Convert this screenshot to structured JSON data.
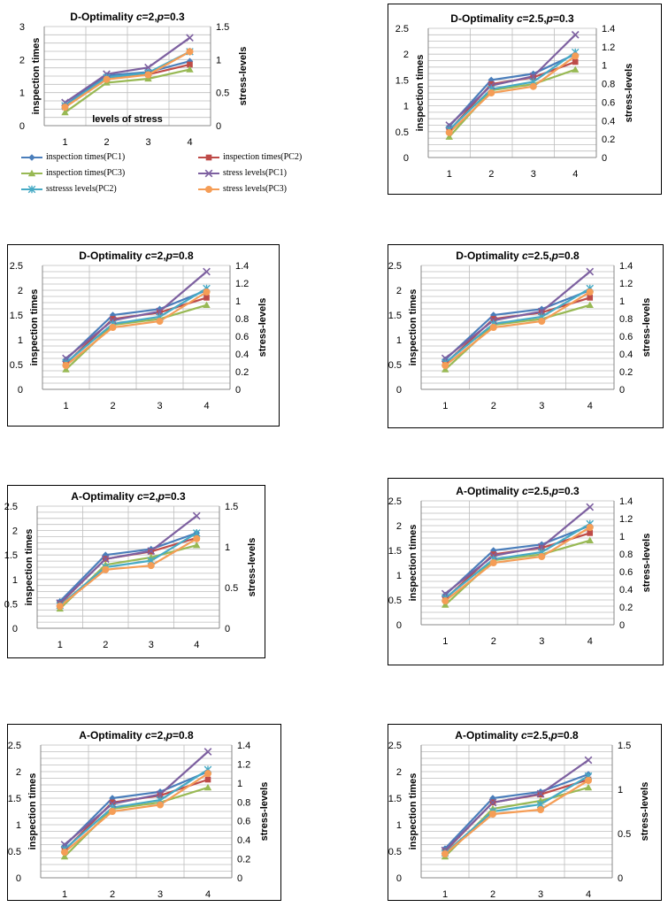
{
  "colors": {
    "inspection_pc1": "#4A7EBB",
    "inspection_pc2": "#BE4B48",
    "inspection_pc3": "#98B954",
    "stress_pc1": "#7D60A0",
    "stress_pc2": "#46AAC5",
    "stress_pc3": "#F59D56",
    "grid": "#BEBEBE",
    "frame": "#000000"
  },
  "legend": [
    {
      "label": "inspection times(PC1)",
      "marker": "diamond",
      "color_key": "inspection_pc1"
    },
    {
      "label": "inspection times(PC2)",
      "marker": "square",
      "color_key": "inspection_pc2"
    },
    {
      "label": "inspection times(PC3)",
      "marker": "triangle",
      "color_key": "inspection_pc3"
    },
    {
      "label": "stress levels(PC1)",
      "marker": "x",
      "color_key": "stress_pc1"
    },
    {
      "label": "sstresss levels(PC2)",
      "marker": "star",
      "color_key": "stress_pc2"
    },
    {
      "label": "stress levels(PC3)",
      "marker": "circle",
      "color_key": "stress_pc3"
    }
  ],
  "chart_data": [
    {
      "type": "line",
      "title_prefix": "D-Optimality",
      "c": "2",
      "p": "0.3",
      "categories": [
        "1",
        "2",
        "3",
        "4"
      ],
      "ylabel_left": "inspection times",
      "ylabel_right": "stress-levels",
      "xlabel": "levels  of stress",
      "ylim_left": [
        0,
        3
      ],
      "yticks_left": [
        "0",
        "1",
        "2",
        "3"
      ],
      "ygrid_step_left": 0.25,
      "ylim_right": [
        0,
        1.5
      ],
      "yticks_right": [
        "0",
        "0.5",
        "1",
        "1.5"
      ],
      "series": [
        {
          "name": "inspection times(PC1)",
          "axis": "left",
          "values": [
            0.62,
            1.52,
            1.62,
            1.95
          ]
        },
        {
          "name": "inspection times(PC2)",
          "axis": "left",
          "values": [
            0.56,
            1.43,
            1.55,
            1.85
          ]
        },
        {
          "name": "inspection times(PC3)",
          "axis": "left",
          "values": [
            0.4,
            1.3,
            1.42,
            1.7
          ]
        },
        {
          "name": "stress levels(PC1)",
          "axis": "right",
          "values": [
            0.35,
            0.78,
            0.88,
            1.33
          ]
        },
        {
          "name": "sstresss levels(PC2)",
          "axis": "right",
          "values": [
            0.3,
            0.73,
            0.8,
            1.12
          ]
        },
        {
          "name": "stress levels(PC3)",
          "axis": "right",
          "values": [
            0.28,
            0.7,
            0.77,
            1.12
          ]
        }
      ]
    },
    {
      "type": "line",
      "title_prefix": "D-Optimality",
      "c": "2.5",
      "p": "0.3",
      "categories": [
        "1",
        "2",
        "3",
        "4"
      ],
      "ylabel_left": "inspection times",
      "ylabel_right": "stress-levels",
      "xlabel": "",
      "ylim_left": [
        0,
        2.5
      ],
      "yticks_left": [
        "0",
        "0.5",
        "1",
        "1.5",
        "2",
        "2.5"
      ],
      "ygrid_step_left": 0.125,
      "ylim_right": [
        0,
        1.4
      ],
      "yticks_right": [
        "0",
        "0.2",
        "0.4",
        "0.6",
        "0.8",
        "1",
        "1.2",
        "1.4"
      ],
      "series": [
        {
          "name": "inspection times(PC1)",
          "axis": "left",
          "values": [
            0.6,
            1.5,
            1.62,
            2.0
          ]
        },
        {
          "name": "inspection times(PC2)",
          "axis": "left",
          "values": [
            0.52,
            1.42,
            1.55,
            1.85
          ]
        },
        {
          "name": "inspection times(PC3)",
          "axis": "left",
          "values": [
            0.4,
            1.3,
            1.42,
            1.7
          ]
        },
        {
          "name": "stress levels(PC1)",
          "axis": "right",
          "values": [
            0.35,
            0.78,
            0.88,
            1.33
          ]
        },
        {
          "name": "sstresss levels(PC2)",
          "axis": "right",
          "values": [
            0.3,
            0.74,
            0.82,
            1.14
          ]
        },
        {
          "name": "stress levels(PC3)",
          "axis": "right",
          "values": [
            0.27,
            0.7,
            0.77,
            1.1
          ]
        }
      ]
    },
    {
      "type": "line",
      "title_prefix": "D-Optimality",
      "c": "2",
      "p": "0.8",
      "categories": [
        "1",
        "2",
        "3",
        "4"
      ],
      "ylabel_left": "inspection times",
      "ylabel_right": "stress-levels",
      "xlabel": "",
      "ylim_left": [
        0,
        2.5
      ],
      "yticks_left": [
        "0",
        "0.5",
        "1",
        "1.5",
        "2",
        "2.5"
      ],
      "ygrid_step_left": 0.125,
      "ylim_right": [
        0,
        1.4
      ],
      "yticks_right": [
        "0",
        "0.2",
        "0.4",
        "0.6",
        "0.8",
        "1",
        "1.2",
        "1.4"
      ],
      "series": [
        {
          "name": "inspection times(PC1)",
          "axis": "left",
          "values": [
            0.6,
            1.5,
            1.62,
            2.0
          ]
        },
        {
          "name": "inspection times(PC2)",
          "axis": "left",
          "values": [
            0.52,
            1.42,
            1.55,
            1.85
          ]
        },
        {
          "name": "inspection times(PC3)",
          "axis": "left",
          "values": [
            0.4,
            1.3,
            1.42,
            1.7
          ]
        },
        {
          "name": "stress levels(PC1)",
          "axis": "right",
          "values": [
            0.35,
            0.78,
            0.88,
            1.33
          ]
        },
        {
          "name": "sstresss levels(PC2)",
          "axis": "right",
          "values": [
            0.3,
            0.74,
            0.82,
            1.14
          ]
        },
        {
          "name": "stress levels(PC3)",
          "axis": "right",
          "values": [
            0.27,
            0.7,
            0.77,
            1.1
          ]
        }
      ]
    },
    {
      "type": "line",
      "title_prefix": "D-Optimality",
      "c": "2.5",
      "p": "0.8",
      "categories": [
        "1",
        "2",
        "3",
        "4"
      ],
      "ylabel_left": "inspection times",
      "ylabel_right": "stress-levels",
      "xlabel": "",
      "ylim_left": [
        0,
        2.5
      ],
      "yticks_left": [
        "0",
        "0.5",
        "1",
        "1.5",
        "2",
        "2.5"
      ],
      "ygrid_step_left": 0.125,
      "ylim_right": [
        0,
        1.4
      ],
      "yticks_right": [
        "0",
        "0.2",
        "0.4",
        "0.6",
        "0.8",
        "1",
        "1.2",
        "1.4"
      ],
      "series": [
        {
          "name": "inspection times(PC1)",
          "axis": "left",
          "values": [
            0.6,
            1.5,
            1.62,
            2.0
          ]
        },
        {
          "name": "inspection times(PC2)",
          "axis": "left",
          "values": [
            0.52,
            1.42,
            1.55,
            1.85
          ]
        },
        {
          "name": "inspection times(PC3)",
          "axis": "left",
          "values": [
            0.4,
            1.3,
            1.42,
            1.7
          ]
        },
        {
          "name": "stress levels(PC1)",
          "axis": "right",
          "values": [
            0.35,
            0.78,
            0.88,
            1.33
          ]
        },
        {
          "name": "sstresss levels(PC2)",
          "axis": "right",
          "values": [
            0.3,
            0.74,
            0.82,
            1.14
          ]
        },
        {
          "name": "stress levels(PC3)",
          "axis": "right",
          "values": [
            0.27,
            0.7,
            0.77,
            1.1
          ]
        }
      ]
    },
    {
      "type": "line",
      "title_prefix": "A-Optimality",
      "c": "2",
      "p": "0.3",
      "categories": [
        "1",
        "2",
        "3",
        "4"
      ],
      "ylabel_left": "inspection times",
      "ylabel_right": "stress-levels",
      "xlabel": "",
      "ylim_left": [
        0,
        2.5
      ],
      "yticks_left": [
        "0",
        "0.5",
        "1",
        "1.5",
        "2",
        "2.5"
      ],
      "ygrid_step_left": 0.125,
      "ylim_right": [
        0,
        1.5
      ],
      "yticks_right": [
        "0",
        "0.5",
        "1",
        "1.5"
      ],
      "series": [
        {
          "name": "inspection times(PC1)",
          "axis": "left",
          "values": [
            0.55,
            1.5,
            1.62,
            1.95
          ]
        },
        {
          "name": "inspection times(PC2)",
          "axis": "left",
          "values": [
            0.5,
            1.42,
            1.57,
            1.85
          ]
        },
        {
          "name": "inspection times(PC3)",
          "axis": "left",
          "values": [
            0.4,
            1.3,
            1.45,
            1.7
          ]
        },
        {
          "name": "stress levels(PC1)",
          "axis": "right",
          "values": [
            0.31,
            0.85,
            0.95,
            1.38
          ]
        },
        {
          "name": "sstresss levels(PC2)",
          "axis": "right",
          "values": [
            0.28,
            0.75,
            0.83,
            1.17
          ]
        },
        {
          "name": "stress levels(PC3)",
          "axis": "right",
          "values": [
            0.27,
            0.72,
            0.77,
            1.1
          ]
        }
      ]
    },
    {
      "type": "line",
      "title_prefix": "A-Optimality",
      "c": "2.5",
      "p": "0.3",
      "categories": [
        "1",
        "2",
        "3",
        "4"
      ],
      "ylabel_left": "inspection times",
      "ylabel_right": "stress-levels",
      "xlabel": "",
      "ylim_left": [
        0,
        2.5
      ],
      "yticks_left": [
        "0",
        "0.5",
        "1",
        "1.5",
        "2",
        "2.5"
      ],
      "ygrid_step_left": 0.125,
      "ylim_right": [
        0,
        1.4
      ],
      "yticks_right": [
        "0",
        "0.2",
        "0.4",
        "0.6",
        "0.8",
        "1",
        "1.2",
        "1.4"
      ],
      "series": [
        {
          "name": "inspection times(PC1)",
          "axis": "left",
          "values": [
            0.6,
            1.5,
            1.62,
            2.0
          ]
        },
        {
          "name": "inspection times(PC2)",
          "axis": "left",
          "values": [
            0.52,
            1.42,
            1.55,
            1.85
          ]
        },
        {
          "name": "inspection times(PC3)",
          "axis": "left",
          "values": [
            0.4,
            1.3,
            1.42,
            1.7
          ]
        },
        {
          "name": "stress levels(PC1)",
          "axis": "right",
          "values": [
            0.35,
            0.78,
            0.88,
            1.33
          ]
        },
        {
          "name": "sstresss levels(PC2)",
          "axis": "right",
          "values": [
            0.3,
            0.74,
            0.82,
            1.14
          ]
        },
        {
          "name": "stress levels(PC3)",
          "axis": "right",
          "values": [
            0.27,
            0.7,
            0.77,
            1.1
          ]
        }
      ]
    },
    {
      "type": "line",
      "title_prefix": "A-Optimality",
      "c": "2",
      "p": "0.8",
      "categories": [
        "1",
        "2",
        "3",
        "4"
      ],
      "ylabel_left": "inspection times",
      "ylabel_right": "stress-levels",
      "xlabel": "",
      "ylim_left": [
        0,
        2.5
      ],
      "yticks_left": [
        "0",
        "0.5",
        "1",
        "1.5",
        "2",
        "2.5"
      ],
      "ygrid_step_left": 0.125,
      "ylim_right": [
        0,
        1.4
      ],
      "yticks_right": [
        "0",
        "0.2",
        "0.4",
        "0.6",
        "0.8",
        "1",
        "1.2",
        "1.4"
      ],
      "series": [
        {
          "name": "inspection times(PC1)",
          "axis": "left",
          "values": [
            0.6,
            1.5,
            1.62,
            2.0
          ]
        },
        {
          "name": "inspection times(PC2)",
          "axis": "left",
          "values": [
            0.52,
            1.42,
            1.55,
            1.85
          ]
        },
        {
          "name": "inspection times(PC3)",
          "axis": "left",
          "values": [
            0.4,
            1.3,
            1.42,
            1.7
          ]
        },
        {
          "name": "stress levels(PC1)",
          "axis": "right",
          "values": [
            0.35,
            0.78,
            0.88,
            1.33
          ]
        },
        {
          "name": "sstresss levels(PC2)",
          "axis": "right",
          "values": [
            0.3,
            0.74,
            0.82,
            1.14
          ]
        },
        {
          "name": "stress levels(PC3)",
          "axis": "right",
          "values": [
            0.27,
            0.7,
            0.77,
            1.1
          ]
        }
      ]
    },
    {
      "type": "line",
      "title_prefix": "A-Optimality",
      "c": "2.5",
      "p": "0.8",
      "categories": [
        "1",
        "2",
        "3",
        "4"
      ],
      "ylabel_left": "inspection times",
      "ylabel_right": "stress-levels",
      "xlabel": "",
      "ylim_left": [
        0,
        2.5
      ],
      "yticks_left": [
        "0",
        "0.5",
        "1",
        "1.5",
        "2",
        "2.5"
      ],
      "ygrid_step_left": 0.125,
      "ylim_right": [
        0,
        1.5
      ],
      "yticks_right": [
        "0",
        "0.5",
        "1",
        "1.5"
      ],
      "series": [
        {
          "name": "inspection times(PC1)",
          "axis": "left",
          "values": [
            0.55,
            1.5,
            1.62,
            1.95
          ]
        },
        {
          "name": "inspection times(PC2)",
          "axis": "left",
          "values": [
            0.5,
            1.42,
            1.57,
            1.85
          ]
        },
        {
          "name": "inspection times(PC3)",
          "axis": "left",
          "values": [
            0.4,
            1.3,
            1.45,
            1.7
          ]
        },
        {
          "name": "stress levels(PC1)",
          "axis": "right",
          "values": [
            0.31,
            0.85,
            0.95,
            1.33
          ]
        },
        {
          "name": "sstresss levels(PC2)",
          "axis": "right",
          "values": [
            0.28,
            0.75,
            0.83,
            1.15
          ]
        },
        {
          "name": "stress levels(PC3)",
          "axis": "right",
          "values": [
            0.27,
            0.72,
            0.77,
            1.1
          ]
        }
      ]
    }
  ]
}
